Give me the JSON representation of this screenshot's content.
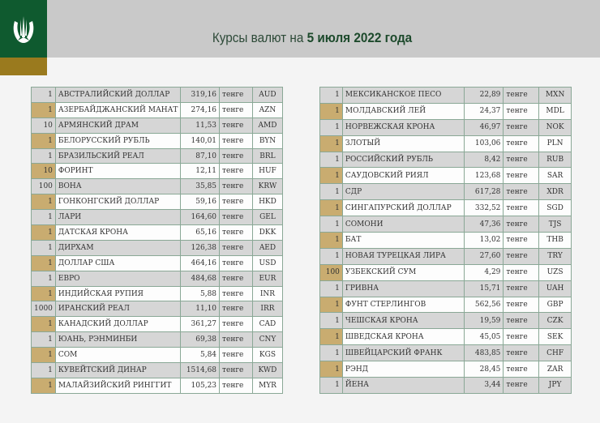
{
  "header": {
    "title_prefix": "Курсы валют на ",
    "title_date": "5 июля 2022 года"
  },
  "unit_label": "тенге",
  "left_table": [
    [
      "1",
      "АВСТРАЛИЙСКИЙ ДОЛЛАР",
      "319,16",
      "AUD"
    ],
    [
      "1",
      "АЗЕРБАЙДЖАНСКИЙ МАНАТ",
      "274,16",
      "AZN"
    ],
    [
      "10",
      "АРМЯНСКИЙ  ДРАМ",
      "11,53",
      "AMD"
    ],
    [
      "1",
      "БЕЛОРУССКИЙ РУБЛЬ",
      "140,01",
      "BYN"
    ],
    [
      "1",
      "БРАЗИЛЬСКИЙ РЕАЛ",
      "87,10",
      "BRL"
    ],
    [
      "10",
      "ФОРИНТ",
      "12,11",
      "HUF"
    ],
    [
      "100",
      "ВОНА",
      "35,85",
      "KRW"
    ],
    [
      "1",
      "ГОНКОНГСКИЙ ДОЛЛАР",
      "59,16",
      "HKD"
    ],
    [
      "1",
      "ЛАРИ",
      "164,60",
      "GEL"
    ],
    [
      "1",
      "ДАТСКАЯ КРОНА",
      "65,16",
      "DKK"
    ],
    [
      "1",
      "ДИРХАМ",
      "126,38",
      "AED"
    ],
    [
      "1",
      "ДОЛЛАР США",
      "464,16",
      "USD"
    ],
    [
      "1",
      "ЕВРО",
      "484,68",
      "EUR"
    ],
    [
      "1",
      "ИНДИЙСКАЯ РУПИЯ",
      "5,88",
      "INR"
    ],
    [
      "1000",
      "ИРАНСКИЙ РЕАЛ",
      "11,10",
      "IRR"
    ],
    [
      "1",
      "КАНАДСКИЙ ДОЛЛАР",
      "361,27",
      "CAD"
    ],
    [
      "1",
      "ЮАНЬ, РЭНМИНБИ",
      "69,38",
      "CNY"
    ],
    [
      "1",
      "СОМ",
      "5,84",
      "KGS"
    ],
    [
      "1",
      "КУВЕЙТСКИЙ ДИНАР",
      "1514,68",
      "KWD"
    ],
    [
      "1",
      "МАЛАЙЗИЙСКИЙ РИНГГИТ",
      "105,23",
      "MYR"
    ]
  ],
  "right_table": [
    [
      "1",
      "МЕКСИКАНСКОЕ ПЕСО",
      "22,89",
      "MXN"
    ],
    [
      "1",
      "МОЛДАВСКИЙ ЛЕЙ",
      "24,37",
      "MDL"
    ],
    [
      "1",
      "НОРВЕЖСКАЯ КРОНА",
      "46,97",
      "NOK"
    ],
    [
      "1",
      "ЗЛОТЫЙ",
      "103,06",
      "PLN"
    ],
    [
      "1",
      "РОССИЙСКИЙ РУБЛЬ",
      "8,42",
      "RUB"
    ],
    [
      "1",
      "САУДОВСКИЙ РИЯЛ",
      "123,68",
      "SAR"
    ],
    [
      "1",
      "СДР",
      "617,28",
      "XDR"
    ],
    [
      "1",
      "СИНГАПУРСКИЙ ДОЛЛАР",
      "332,52",
      "SGD"
    ],
    [
      "1",
      "СОМОНИ",
      "47,36",
      "TJS"
    ],
    [
      "1",
      "БАТ",
      "13,02",
      "THB"
    ],
    [
      "1",
      "НОВАЯ ТУРЕЦКАЯ ЛИРА",
      "27,60",
      "TRY"
    ],
    [
      "100",
      "УЗБЕКСКИЙ СУМ",
      "4,29",
      "UZS"
    ],
    [
      "1",
      "ГРИВНА",
      "15,71",
      "UAH"
    ],
    [
      "1",
      "ФУНТ СТЕРЛИНГОВ",
      "562,56",
      "GBP"
    ],
    [
      "1",
      "ЧЕШСКАЯ КРОНА",
      "19,59",
      "CZK"
    ],
    [
      "1",
      "ШВЕДСКАЯ КРОНА",
      "45,05",
      "SEK"
    ],
    [
      "1",
      "ШВЕЙЦАРСКИЙ ФРАНК",
      "483,85",
      "CHF"
    ],
    [
      "1",
      "РЭНД",
      "28,45",
      "ZAR"
    ],
    [
      "1",
      "ЙЕНА",
      "3,44",
      "JPY"
    ]
  ],
  "colors": {
    "brand_green": "#0f5a2f",
    "gold": "#9a7a1e",
    "row_gold": "#c9ac70",
    "row_gray": "#d6d6d6"
  }
}
